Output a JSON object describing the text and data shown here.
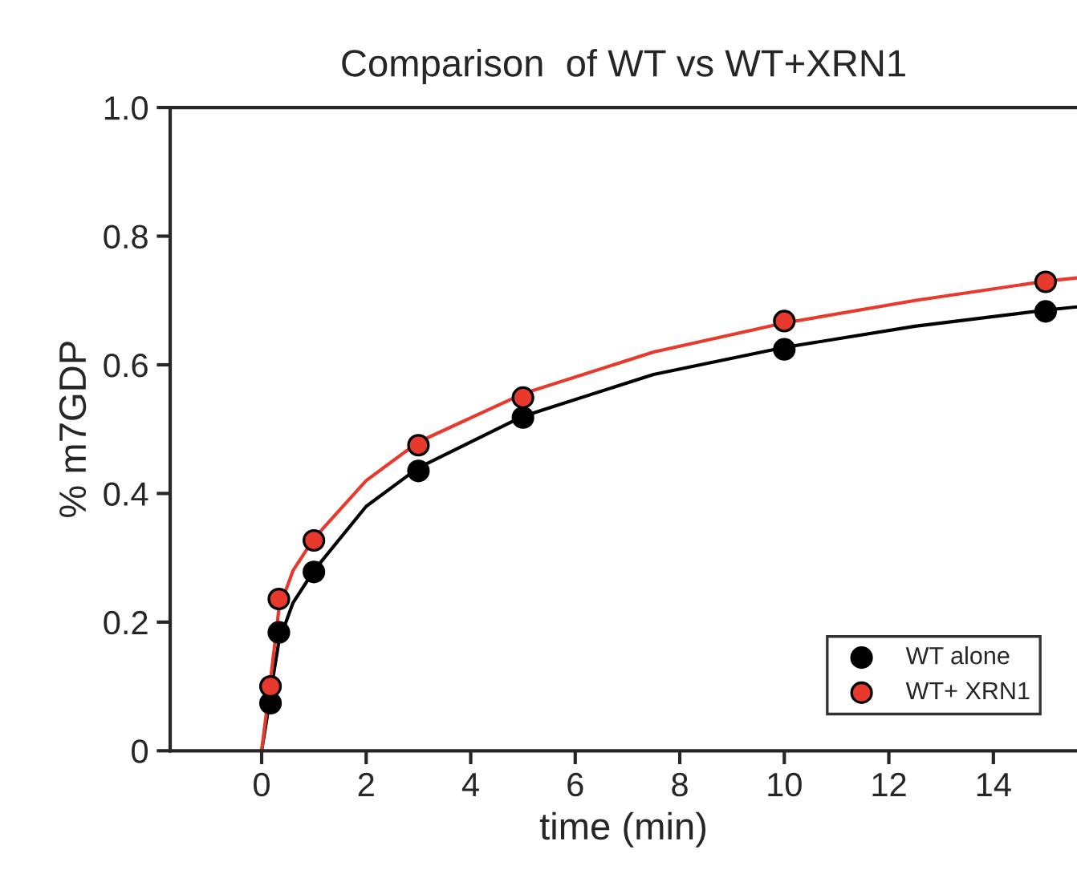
{
  "chart_data": {
    "type": "scatter",
    "title": "Comparison  of WT vs WT+XRN1",
    "xlabel": "time (min)",
    "ylabel": "% m7GDP",
    "series": [
      {
        "name": "WT alone",
        "color": "#000000",
        "x": [
          0.17,
          0.33,
          1,
          3,
          5,
          10,
          15
        ],
        "values": [
          0.074,
          0.184,
          0.278,
          0.435,
          0.518,
          0.624,
          0.683
        ]
      },
      {
        "name": "WT+ XRN1",
        "color": "#e8392d",
        "x": [
          0.17,
          0.33,
          1,
          3,
          5,
          10,
          15
        ],
        "values": [
          0.1,
          0.236,
          0.327,
          0.475,
          0.549,
          0.668,
          0.729
        ]
      },
      {
        "color": "#000000",
        "type": "line",
        "marker": "none",
        "x": [
          0,
          0.1,
          0.17,
          0.33,
          0.6,
          1,
          2,
          3,
          5,
          7.5,
          10,
          12.5,
          15,
          15.6
        ],
        "values": [
          0,
          0.05,
          0.09,
          0.17,
          0.23,
          0.28,
          0.38,
          0.44,
          0.52,
          0.585,
          0.627,
          0.66,
          0.685,
          0.69
        ]
      },
      {
        "color": "#e8392d",
        "type": "line",
        "marker": "none",
        "x": [
          0,
          0.17,
          0.33,
          0.6,
          1,
          2,
          3,
          5,
          7.5,
          10,
          12.5,
          15,
          15.6
        ],
        "values": [
          0,
          0.11,
          0.22,
          0.28,
          0.33,
          0.42,
          0.48,
          0.555,
          0.62,
          0.665,
          0.7,
          0.73,
          0.735
        ]
      }
    ],
    "marker": "circle",
    "xlim": [
      -1.75,
      15.6
    ],
    "ylim": [
      0,
      1
    ],
    "xticks": [
      0,
      2,
      4,
      6,
      8,
      10,
      12,
      14
    ],
    "yticks": [
      0,
      0.2,
      0.4,
      0.6,
      0.8,
      {
        "value": 1,
        "label": "1.0"
      }
    ],
    "legend": "bottom right",
    "grid": false
  }
}
